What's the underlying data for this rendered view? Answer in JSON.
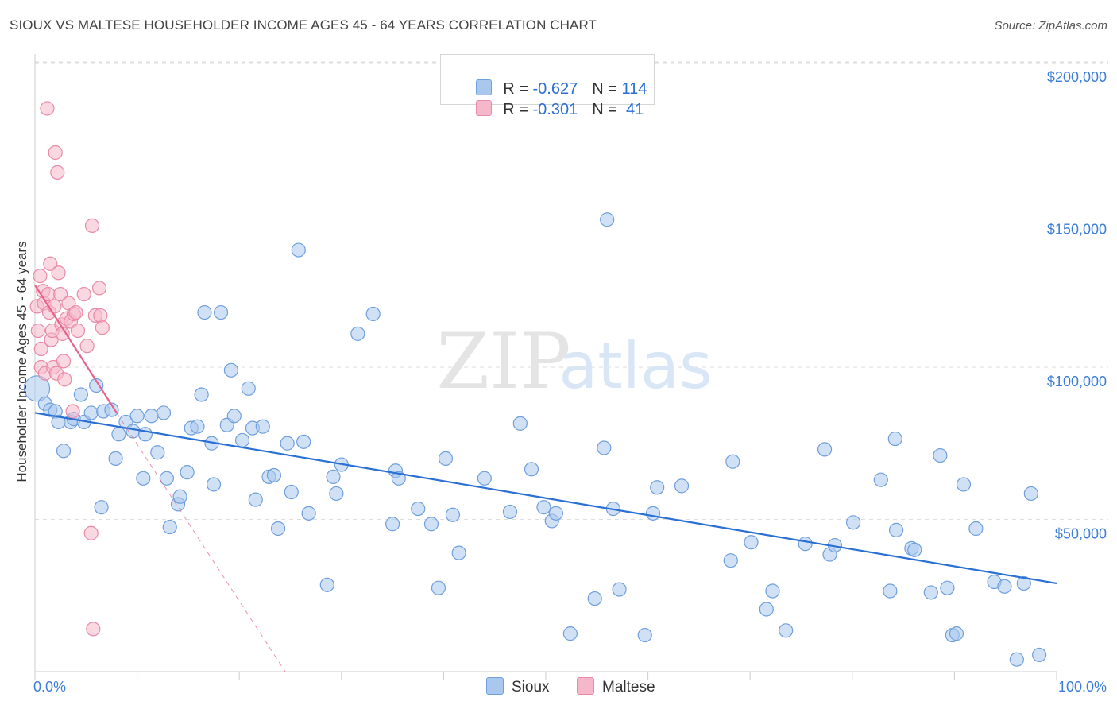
{
  "title": "SIOUX VS MALTESE HOUSEHOLDER INCOME AGES 45 - 64 YEARS CORRELATION CHART",
  "source": "Source: ZipAtlas.com",
  "watermark": {
    "zip": "ZIP",
    "atlas": "atlas"
  },
  "legend": {
    "rows": [
      {
        "name": "Sioux",
        "r_label": "R = ",
        "r_value": "-0.627",
        "n_label": "N = ",
        "n_value": "114"
      },
      {
        "name": "Maltese",
        "r_label": "R = ",
        "r_value": "-0.301",
        "n_label": "N = ",
        "n_value": " 41"
      }
    ]
  },
  "bottom_legend": [
    "Sioux",
    "Maltese"
  ],
  "colors": {
    "sioux_fill": "#aac8ee",
    "sioux_stroke": "#6f9fdd",
    "sioux_line": "#2a6fd4",
    "maltese_fill": "#f5b8cb",
    "maltese_stroke": "#e88aa8",
    "maltese_line": "#e8628e",
    "tick_text": "#3b7dd8",
    "grid": "#dddddd"
  },
  "chart_data": {
    "type": "scatter",
    "title": "SIOUX VS MALTESE HOUSEHOLDER INCOME AGES 45 - 64 YEARS CORRELATION CHART",
    "xlabel": "",
    "ylabel": "Householder Income Ages 45 - 64 years",
    "xlim": [
      0,
      100
    ],
    "ylim": [
      0,
      205000
    ],
    "x_tick_labels": [
      "0.0%",
      "100.0%"
    ],
    "y_ticks": [
      50000,
      100000,
      150000,
      200000
    ],
    "y_tick_labels": [
      "$50,000",
      "$100,000",
      "$150,000",
      "$200,000"
    ],
    "grid": true,
    "legend_position": "top-center",
    "series": [
      {
        "name": "Sioux",
        "trend": {
          "x0": 0,
          "y0": 85000,
          "x1": 100,
          "y1": 29000
        },
        "points": [
          [
            0.2,
            93000
          ],
          [
            1,
            88000
          ],
          [
            1.5,
            86000
          ],
          [
            2,
            85500
          ],
          [
            2.3,
            82000
          ],
          [
            2.8,
            72500
          ],
          [
            3.5,
            82000
          ],
          [
            3.8,
            83000
          ],
          [
            4.5,
            91000
          ],
          [
            4.8,
            82000
          ],
          [
            5.5,
            85000
          ],
          [
            6,
            94000
          ],
          [
            6.5,
            54000
          ],
          [
            6.7,
            85500
          ],
          [
            7.5,
            86000
          ],
          [
            7.9,
            70000
          ],
          [
            8.2,
            78000
          ],
          [
            8.9,
            82000
          ],
          [
            9.6,
            79000
          ],
          [
            10,
            84000
          ],
          [
            10.6,
            63500
          ],
          [
            10.8,
            78000
          ],
          [
            11.4,
            84000
          ],
          [
            12,
            72000
          ],
          [
            12.6,
            85000
          ],
          [
            12.9,
            63500
          ],
          [
            13.2,
            47500
          ],
          [
            14,
            55000
          ],
          [
            14.2,
            57500
          ],
          [
            14.9,
            65500
          ],
          [
            15.3,
            80000
          ],
          [
            15.9,
            80500
          ],
          [
            16.3,
            91000
          ],
          [
            16.6,
            118000
          ],
          [
            17.3,
            75000
          ],
          [
            17.5,
            61500
          ],
          [
            18.2,
            118000
          ],
          [
            18.8,
            81000
          ],
          [
            19.2,
            99000
          ],
          [
            19.5,
            84000
          ],
          [
            20.3,
            76000
          ],
          [
            20.9,
            93000
          ],
          [
            21.3,
            80000
          ],
          [
            21.6,
            56500
          ],
          [
            22.3,
            80500
          ],
          [
            22.9,
            64000
          ],
          [
            23.4,
            64500
          ],
          [
            23.8,
            47000
          ],
          [
            24.7,
            75000
          ],
          [
            25.1,
            59000
          ],
          [
            25.8,
            138500
          ],
          [
            26.3,
            75500
          ],
          [
            26.8,
            52000
          ],
          [
            28.6,
            28500
          ],
          [
            29.2,
            64000
          ],
          [
            29.5,
            58500
          ],
          [
            30,
            68000
          ],
          [
            31.6,
            111000
          ],
          [
            33.1,
            117500
          ],
          [
            35,
            48500
          ],
          [
            35.3,
            66000
          ],
          [
            35.6,
            63500
          ],
          [
            37.5,
            53500
          ],
          [
            38.8,
            48500
          ],
          [
            39.5,
            27500
          ],
          [
            40.2,
            70000
          ],
          [
            40.9,
            51500
          ],
          [
            41.5,
            39000
          ],
          [
            44,
            63500
          ],
          [
            46.5,
            52500
          ],
          [
            47.5,
            81500
          ],
          [
            48.6,
            66500
          ],
          [
            49.8,
            54000
          ],
          [
            50.6,
            49500
          ],
          [
            51,
            52000
          ],
          [
            52.4,
            12500
          ],
          [
            54.8,
            24000
          ],
          [
            55.7,
            73500
          ],
          [
            56,
            148500
          ],
          [
            56.6,
            53500
          ],
          [
            57.2,
            27000
          ],
          [
            59.7,
            12000
          ],
          [
            60.5,
            52000
          ],
          [
            60.9,
            60500
          ],
          [
            63.3,
            61000
          ],
          [
            68.1,
            36500
          ],
          [
            68.3,
            69000
          ],
          [
            70.1,
            42500
          ],
          [
            71.6,
            20500
          ],
          [
            72.2,
            26500
          ],
          [
            73.5,
            13500
          ],
          [
            75.4,
            42000
          ],
          [
            77.3,
            73000
          ],
          [
            77.8,
            38500
          ],
          [
            78.3,
            41500
          ],
          [
            80.1,
            49000
          ],
          [
            82.8,
            63000
          ],
          [
            83.7,
            26500
          ],
          [
            84.2,
            76500
          ],
          [
            84.3,
            46500
          ],
          [
            85.8,
            40500
          ],
          [
            86.1,
            40000
          ],
          [
            87.7,
            26000
          ],
          [
            88.6,
            71000
          ],
          [
            89.3,
            27500
          ],
          [
            89.8,
            12000
          ],
          [
            90.2,
            12500
          ],
          [
            90.9,
            61500
          ],
          [
            92.1,
            47000
          ],
          [
            93.9,
            29500
          ],
          [
            94.9,
            28000
          ],
          [
            96.1,
            4000
          ],
          [
            96.8,
            29000
          ],
          [
            97.5,
            58500
          ],
          [
            98.3,
            5500
          ]
        ]
      },
      {
        "name": "Maltese",
        "trend": {
          "x0": 0,
          "y0": 127000,
          "x1": 8,
          "y1": 85000
        },
        "trend_extension": {
          "x0": 8,
          "y0": 85000,
          "x1": 24.5,
          "y1": 0
        },
        "points": [
          [
            0.2,
            120000
          ],
          [
            0.3,
            112000
          ],
          [
            0.5,
            130000
          ],
          [
            0.6,
            106000
          ],
          [
            0.6,
            100000
          ],
          [
            0.8,
            125000
          ],
          [
            0.9,
            121000
          ],
          [
            1,
            98000
          ],
          [
            1.2,
            185000
          ],
          [
            1.3,
            124000
          ],
          [
            1.4,
            118000
          ],
          [
            1.5,
            134000
          ],
          [
            1.6,
            109000
          ],
          [
            1.7,
            112000
          ],
          [
            1.8,
            100000
          ],
          [
            1.9,
            120000
          ],
          [
            2,
            170500
          ],
          [
            2.1,
            98000
          ],
          [
            2.2,
            164000
          ],
          [
            2.3,
            131000
          ],
          [
            2.5,
            124000
          ],
          [
            2.6,
            114000
          ],
          [
            2.7,
            111000
          ],
          [
            2.8,
            102000
          ],
          [
            2.9,
            96000
          ],
          [
            3.1,
            116000
          ],
          [
            3.3,
            121000
          ],
          [
            3.5,
            115000
          ],
          [
            3.7,
            85500
          ],
          [
            3.8,
            117500
          ],
          [
            4,
            118000
          ],
          [
            4.2,
            112000
          ],
          [
            4.8,
            124000
          ],
          [
            5.1,
            107000
          ],
          [
            5.5,
            45500
          ],
          [
            5.6,
            146500
          ],
          [
            5.7,
            14000
          ],
          [
            5.9,
            117000
          ],
          [
            6.3,
            126000
          ],
          [
            6.4,
            117000
          ],
          [
            6.6,
            113000
          ]
        ]
      }
    ]
  }
}
